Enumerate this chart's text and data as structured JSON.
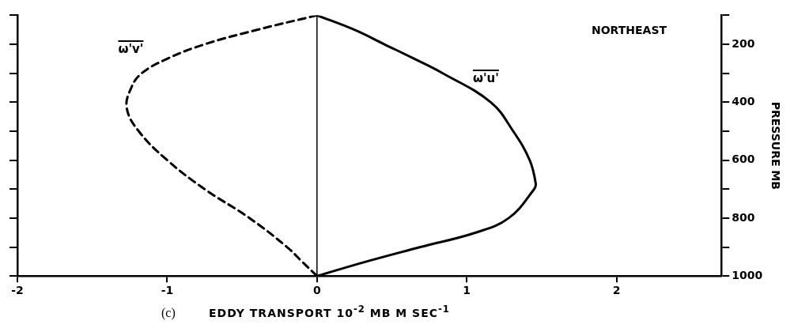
{
  "chart_data": {
    "type": "line",
    "xlabel": "EDDY TRANSPORT 10$^{-2}$ MB M SEC$^{-1}$",
    "ylabel": "PRESSURE MB",
    "annotations": [
      "NORTHEAST",
      "(c)"
    ],
    "xlim": [
      -2,
      2.7
    ],
    "xticks": [
      -2,
      -1,
      0,
      1,
      2
    ],
    "ylim": [
      1000,
      100
    ],
    "yticks": [
      {
        "value": 100,
        "label": null
      },
      200,
      {
        "value": 300,
        "label": null
      },
      400,
      {
        "value": 500,
        "label": null
      },
      600,
      {
        "value": 700,
        "label": null
      },
      800,
      {
        "value": 900,
        "label": null
      },
      1000
    ],
    "tick_labels": "xy",
    "grid": false,
    "legend": false,
    "marker": "none",
    "ref_lines": [
      {
        "axis": "x",
        "value": 0,
        "label": null
      }
    ],
    "series": [
      {
        "name": "ω'v'",
        "color": "#000000",
        "line_style": "dashed",
        "x": [
          0,
          -0.4,
          -0.75,
          -1.0,
          -1.17,
          -1.24,
          -1.27,
          -1.19,
          -1.0,
          -0.75,
          -0.45,
          -0.2,
          -0.1,
          0
        ],
        "values": [
          100,
          150,
          200,
          250,
          300,
          350,
          420,
          500,
          600,
          700,
          800,
          900,
          950,
          1000
        ]
      },
      {
        "name": "ω'u'",
        "color": "#000000",
        "line_style": "solid",
        "x": [
          0,
          0.25,
          0.45,
          0.65,
          0.84,
          1.16,
          1.31,
          1.42,
          1.46,
          1.45,
          1.28,
          1.06,
          0.69,
          0.33,
          0
        ],
        "values": [
          100,
          150,
          200,
          250,
          300,
          400,
          500,
          600,
          680,
          700,
          800,
          850,
          900,
          950,
          1000
        ]
      }
    ]
  }
}
